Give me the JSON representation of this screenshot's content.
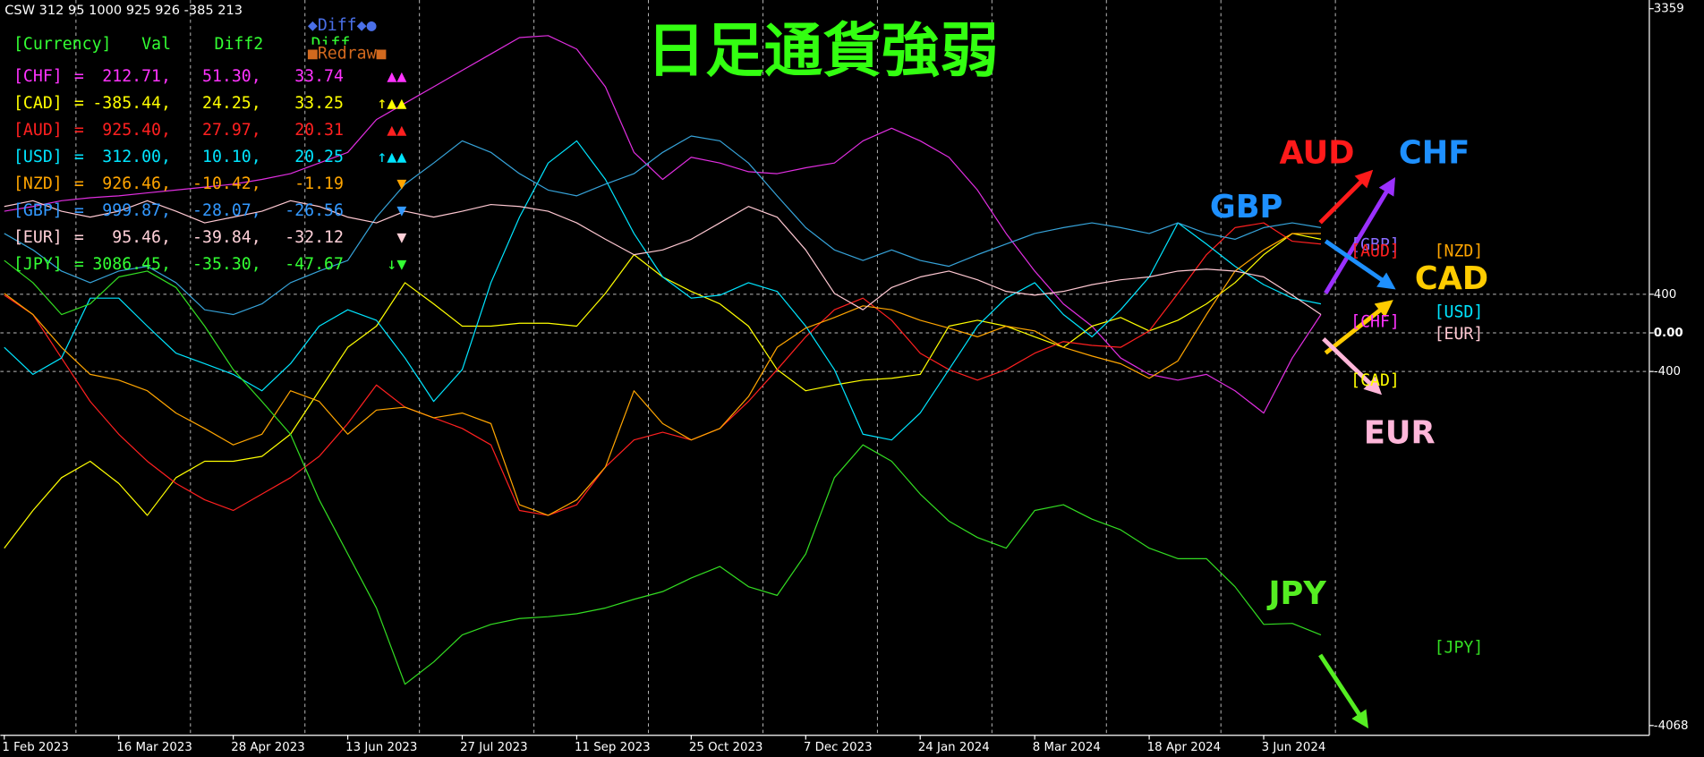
{
  "chart_data": {
    "type": "line",
    "title": "日足通貨強弱",
    "header_text": "CSW 312 95 1000 925 926 -385 213",
    "categories": [
      "1 Feb 2023",
      null,
      null,
      null,
      "16 Mar 2023",
      null,
      null,
      null,
      "28 Apr 2023",
      null,
      null,
      null,
      "13 Jun 2023",
      null,
      null,
      null,
      "27 Jul 2023",
      null,
      null,
      null,
      "11 Sep 2023",
      null,
      null,
      null,
      "25 Oct 2023",
      null,
      null,
      null,
      "7 Dec 2023",
      null,
      null,
      null,
      "24 Jan 2024",
      null,
      null,
      null,
      "8 Mar 2024",
      null,
      null,
      null,
      "18 Apr 2024",
      null,
      null,
      null,
      "3 Jun 2024",
      null,
      null
    ],
    "ylim": [
      -4068,
      3359
    ],
    "yticks": [
      3359,
      400,
      {
        "value": 0,
        "label": "0.00"
      },
      -400,
      -4068
    ],
    "series": [
      {
        "name": "CHF",
        "color": "#e02ee0",
        "values": [
          1260,
          1310,
          1370,
          1400,
          1420,
          1450,
          1480,
          1510,
          1540,
          1590,
          1650,
          1760,
          1870,
          2210,
          2380,
          2550,
          2720,
          2890,
          3060,
          3080,
          2940,
          2550,
          1870,
          1590,
          1820,
          1760,
          1670,
          1650,
          1710,
          1760,
          1990,
          2120,
          1990,
          1820,
          1480,
          1030,
          640,
          300,
          70,
          -260,
          -430,
          -490,
          -430,
          -600,
          -830,
          -260,
          190
        ]
      },
      {
        "name": "CAD",
        "color": "#ffff00",
        "values": [
          -2230,
          -1840,
          -1500,
          -1330,
          -1560,
          -1890,
          -1500,
          -1330,
          -1330,
          -1280,
          -1050,
          -600,
          -150,
          70,
          520,
          300,
          70,
          70,
          100,
          100,
          70,
          410,
          810,
          580,
          430,
          300,
          70,
          -380,
          -600,
          -540,
          -490,
          -470,
          -430,
          70,
          130,
          70,
          -40,
          -150,
          70,
          160,
          20,
          130,
          300,
          520,
          810,
          1030,
          970
        ]
      },
      {
        "name": "AUD",
        "color": "#ff2020",
        "values": [
          390,
          190,
          -260,
          -710,
          -1050,
          -1330,
          -1560,
          -1730,
          -1840,
          -1670,
          -1500,
          -1280,
          -940,
          -540,
          -770,
          -880,
          -990,
          -1160,
          -1840,
          -1890,
          -1780,
          -1390,
          -1110,
          -1030,
          -1110,
          -990,
          -710,
          -380,
          -40,
          240,
          360,
          130,
          -210,
          -380,
          -490,
          -380,
          -210,
          -90,
          -130,
          -150,
          20,
          410,
          810,
          1090,
          1140,
          950,
          920
        ]
      },
      {
        "name": "USD",
        "color": "#00e5ff",
        "values": [
          -150,
          -430,
          -260,
          360,
          360,
          70,
          -210,
          -320,
          -430,
          -600,
          -320,
          70,
          240,
          130,
          -260,
          -710,
          -380,
          520,
          1200,
          1760,
          1990,
          1590,
          1030,
          580,
          360,
          390,
          520,
          430,
          70,
          -380,
          -1050,
          -1110,
          -830,
          -380,
          70,
          360,
          520,
          190,
          -40,
          240,
          580,
          1140,
          920,
          690,
          500,
          360,
          300
        ]
      },
      {
        "name": "NZD",
        "color": "#ffa500",
        "values": [
          410,
          190,
          -150,
          -430,
          -490,
          -600,
          -830,
          -990,
          -1160,
          -1050,
          -600,
          -710,
          -1050,
          -800,
          -770,
          -880,
          -830,
          -940,
          -1780,
          -1890,
          -1730,
          -1390,
          -600,
          -940,
          -1110,
          -990,
          -660,
          -150,
          50,
          160,
          280,
          240,
          130,
          50,
          -40,
          70,
          20,
          -150,
          -240,
          -320,
          -470,
          -290,
          190,
          640,
          860,
          1030,
          1030
        ]
      },
      {
        "name": "GBP",
        "color": "#36a3d9",
        "values": [
          1030,
          860,
          640,
          520,
          640,
          690,
          520,
          240,
          190,
          300,
          520,
          640,
          750,
          1200,
          1540,
          1760,
          1990,
          1870,
          1650,
          1480,
          1420,
          1540,
          1650,
          1870,
          2040,
          1990,
          1760,
          1420,
          1090,
          860,
          750,
          860,
          750,
          690,
          810,
          920,
          1030,
          1090,
          1140,
          1090,
          1030,
          1140,
          1030,
          970,
          1090,
          1140,
          1090
        ]
      },
      {
        "name": "EUR",
        "color": "#ffc8d2",
        "values": [
          1310,
          1370,
          1260,
          1200,
          1260,
          1370,
          1260,
          1140,
          1200,
          1260,
          1370,
          1310,
          1200,
          1140,
          1260,
          1200,
          1260,
          1330,
          1310,
          1260,
          1140,
          970,
          810,
          860,
          970,
          1140,
          1310,
          1200,
          860,
          410,
          240,
          470,
          580,
          640,
          550,
          430,
          390,
          430,
          500,
          550,
          580,
          640,
          660,
          640,
          580,
          390,
          190
        ]
      },
      {
        "name": "JPY",
        "color": "#33dd22",
        "values": [
          750,
          520,
          190,
          300,
          580,
          640,
          470,
          70,
          -380,
          -710,
          -1050,
          -1730,
          -2290,
          -2850,
          -3640,
          -3410,
          -3130,
          -3020,
          -2960,
          -2940,
          -2910,
          -2850,
          -2760,
          -2680,
          -2540,
          -2420,
          -2630,
          -2720,
          -2290,
          -1500,
          -1160,
          -1330,
          -1670,
          -1950,
          -2120,
          -2230,
          -1840,
          -1780,
          -1930,
          -2040,
          -2230,
          -2340,
          -2340,
          -2630,
          -3020,
          -3010,
          -3130
        ]
      }
    ],
    "annotations": [
      {
        "text": "AUD",
        "color": "#ff1a1a"
      },
      {
        "text": "CHF",
        "color": "#1e90ff"
      },
      {
        "text": "GBP",
        "color": "#1e90ff"
      },
      {
        "text": "CAD",
        "color": "#ffcc00"
      },
      {
        "text": "EUR",
        "color": "#ffb6d9"
      },
      {
        "text": "JPY",
        "color": "#55ee22"
      }
    ],
    "end_labels": [
      {
        "text": "[GBP]",
        "color": "#8a6cff"
      },
      {
        "text": "[AUD]",
        "color": "#ff2020"
      },
      {
        "text": "[NZD]",
        "color": "#ffa500"
      },
      {
        "text": "[USD]",
        "color": "#00e5ff"
      },
      {
        "text": "[EUR]",
        "color": "#ffc8d2"
      },
      {
        "text": "[CHF]",
        "color": "#ff33ff"
      },
      {
        "text": "[CAD]",
        "color": "#ffff00"
      },
      {
        "text": "[JPY]",
        "color": "#33dd22"
      }
    ]
  },
  "panel": {
    "header": [
      "[Currency]",
      "Val",
      "Diff2",
      "Diff"
    ],
    "header_color": "#33ff33",
    "buttons": [
      {
        "text": "◆Diff◆●",
        "color": "#4a6fe8"
      },
      {
        "text": "■Redraw■",
        "color": "#d2691e"
      }
    ],
    "rows": [
      {
        "color": "#ff33ff",
        "cells": [
          "[CHF]",
          "=",
          "212.71,",
          "51.30,",
          "33.74",
          "▲▲"
        ]
      },
      {
        "color": "#ffff00",
        "cells": [
          "[CAD]",
          "=",
          "-385.44,",
          "24.25,",
          "33.25",
          "↑▲▲"
        ]
      },
      {
        "color": "#ff2020",
        "cells": [
          "[AUD]",
          "=",
          "925.40,",
          "27.97,",
          "20.31",
          "▲▲"
        ]
      },
      {
        "color": "#00e5ff",
        "cells": [
          "[USD]",
          "=",
          "312.00,",
          "10.10,",
          "20.25",
          "↑▲▲"
        ]
      },
      {
        "color": "#ffa500",
        "cells": [
          "[NZD]",
          "=",
          "926.46,",
          "-10.42,",
          "-1.19",
          "▼"
        ]
      },
      {
        "color": "#3399ff",
        "cells": [
          "[GBP]",
          "=",
          "999.87,",
          "-28.07,",
          "-26.56",
          "▼"
        ]
      },
      {
        "color": "#ffd0d8",
        "cells": [
          "[EUR]",
          "=",
          "95.46,",
          "-39.84,",
          "-32.12",
          "▼"
        ]
      },
      {
        "color": "#33ff33",
        "cells": [
          "[JPY]",
          "=",
          "3086.45,",
          "-35.30,",
          "-47.67",
          "↓▼"
        ]
      }
    ]
  }
}
